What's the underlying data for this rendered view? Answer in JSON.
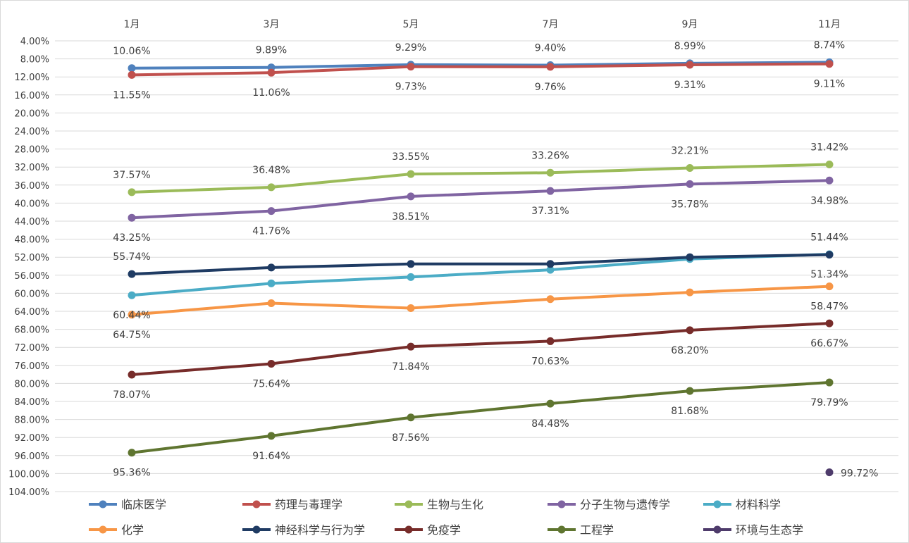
{
  "chart_data": {
    "type": "line",
    "title": "",
    "xlabel": "",
    "ylabel": "",
    "categories": [
      "1月",
      "3月",
      "5月",
      "7月",
      "9月",
      "11月"
    ],
    "y_axis": {
      "reversed": true,
      "min": 0.04,
      "max": 1.04,
      "step": 0.04,
      "tick_labels": [
        "4.00%",
        "8.00%",
        "12.00%",
        "16.00%",
        "20.00%",
        "24.00%",
        "28.00%",
        "32.00%",
        "36.00%",
        "40.00%",
        "44.00%",
        "48.00%",
        "52.00%",
        "56.00%",
        "60.00%",
        "64.00%",
        "68.00%",
        "72.00%",
        "76.00%",
        "80.00%",
        "84.00%",
        "88.00%",
        "92.00%",
        "96.00%",
        "100.00%",
        "104.00%"
      ]
    },
    "grid": true,
    "legend_position": "bottom",
    "series": [
      {
        "name": "临床医学",
        "color": "#4f81bd",
        "values": [
          0.1006,
          0.0989,
          0.0929,
          0.094,
          0.0899,
          0.0874
        ],
        "labels": [
          "10.06%",
          "9.89%",
          "9.29%",
          "9.40%",
          "8.99%",
          "8.74%"
        ],
        "label_pos": "above"
      },
      {
        "name": "药理与毒理学",
        "color": "#c0504d",
        "values": [
          0.1155,
          0.1106,
          0.0973,
          0.0976,
          0.0931,
          0.0911
        ],
        "labels": [
          "11.55%",
          "11.06%",
          "9.73%",
          "9.76%",
          "9.31%",
          "9.11%"
        ],
        "label_pos": "below"
      },
      {
        "name": "生物与生化",
        "color": "#9bbb59",
        "values": [
          0.3757,
          0.3648,
          0.3355,
          0.3326,
          0.3221,
          0.3142
        ],
        "labels": [
          "37.57%",
          "36.48%",
          "33.55%",
          "33.26%",
          "32.21%",
          "31.42%"
        ],
        "label_pos": "above"
      },
      {
        "name": "分子生物与遗传学",
        "color": "#8064a2",
        "values": [
          0.4325,
          0.4176,
          0.3851,
          0.3731,
          0.3578,
          0.3498
        ],
        "labels": [
          "43.25%",
          "41.76%",
          "38.51%",
          "37.31%",
          "35.78%",
          "34.98%"
        ],
        "label_pos": "below"
      },
      {
        "name": "材料科学",
        "color": "#4bacc6",
        "values": [
          0.6044,
          0.578,
          0.564,
          0.548,
          0.524,
          0.5134
        ],
        "labels": [
          "60.44%",
          "",
          "",
          "",
          "",
          "51.34%"
        ],
        "label_pos": "below"
      },
      {
        "name": "化学",
        "color": "#f79646",
        "values": [
          0.6475,
          0.622,
          0.633,
          0.613,
          0.598,
          0.5847
        ],
        "labels": [
          "64.75%",
          "",
          "",
          "",
          "",
          "58.47%"
        ],
        "label_pos": "below"
      },
      {
        "name": "神经科学与行为学",
        "color": "#1f3b63",
        "values": [
          0.5574,
          0.543,
          0.535,
          0.535,
          0.52,
          0.5144
        ],
        "labels": [
          "55.74%",
          "",
          "",
          "",
          "",
          "51.44%"
        ],
        "label_pos": "above"
      },
      {
        "name": "免疫学",
        "color": "#772c2a",
        "values": [
          0.7807,
          0.7564,
          0.7184,
          0.7063,
          0.682,
          0.6667
        ],
        "labels": [
          "78.07%",
          "75.64%",
          "71.84%",
          "70.63%",
          "68.20%",
          "66.67%"
        ],
        "label_pos": "below"
      },
      {
        "name": "工程学",
        "color": "#5f7530",
        "values": [
          0.9536,
          0.9164,
          0.8756,
          0.8448,
          0.8168,
          0.7979
        ],
        "labels": [
          "95.36%",
          "91.64%",
          "87.56%",
          "84.48%",
          "81.68%",
          "79.79%"
        ],
        "label_pos": "below"
      },
      {
        "name": "环境与生态学",
        "color": "#4e3b6b",
        "values": [
          null,
          null,
          null,
          null,
          null,
          0.9972
        ],
        "labels": [
          "",
          "",
          "",
          "",
          "",
          "99.72%"
        ],
        "label_pos": "right"
      }
    ]
  }
}
